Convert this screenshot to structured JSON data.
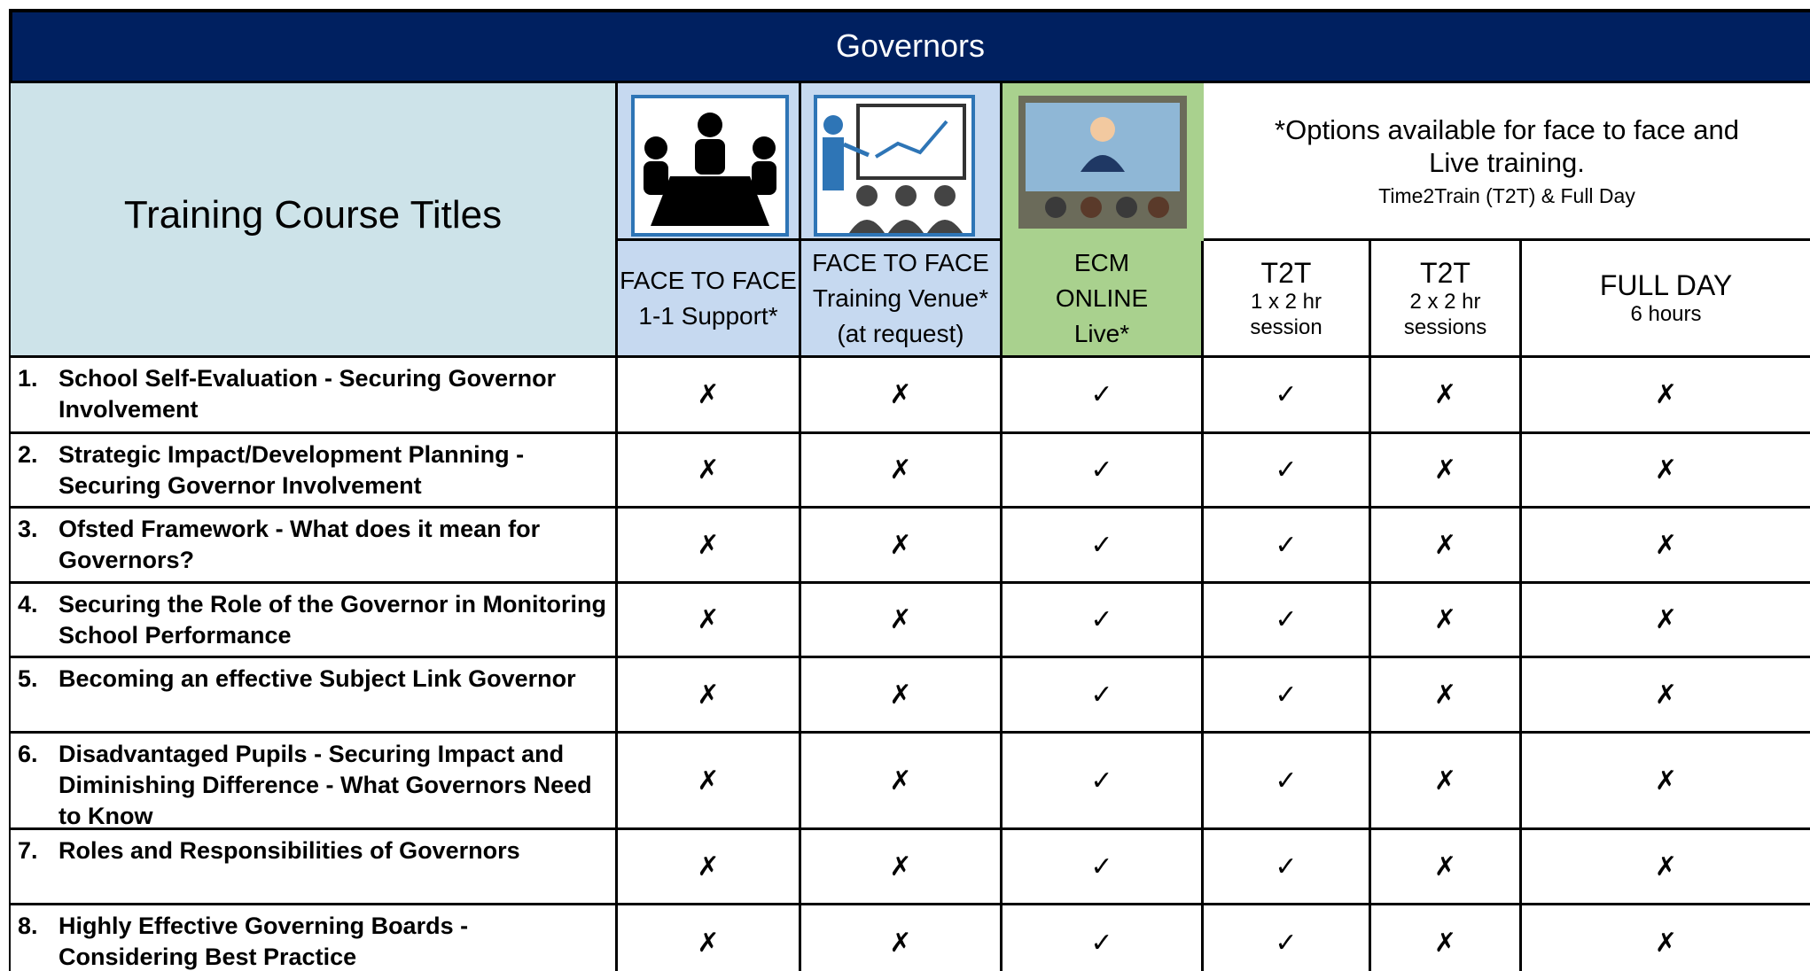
{
  "header": {
    "title": "Governors"
  },
  "table": {
    "title_header": "Training Course Titles",
    "note": {
      "main": "*Options available for face to face and Live training.",
      "sub": "Time2Train (T2T) & Full Day"
    },
    "columns": [
      {
        "lines": [
          "FACE TO FACE",
          "1-1 Support*"
        ]
      },
      {
        "lines": [
          "FACE TO FACE",
          "Training Venue*",
          "(at request)"
        ]
      },
      {
        "lines": [
          "ECM",
          "ONLINE",
          "Live*"
        ]
      },
      {
        "lines": [
          "T2T",
          "1 x 2 hr",
          "session"
        ]
      },
      {
        "lines": [
          "T2T",
          "2 x 2 hr",
          "sessions"
        ]
      },
      {
        "lines": [
          "FULL DAY",
          "6 hours"
        ]
      }
    ],
    "rows": [
      {
        "number": "1.",
        "title": "School Self-Evaluation - Securing Governor Involvement",
        "marks": [
          "✗",
          "✗",
          "✓",
          "✓",
          "✗",
          "✗"
        ]
      },
      {
        "number": "2.",
        "title": "Strategic Impact/Development Planning - Securing Governor Involvement",
        "marks": [
          "✗",
          "✗",
          "✓",
          "✓",
          "✗",
          "✗"
        ]
      },
      {
        "number": "3.",
        "title": "Ofsted Framework  - What does it mean for Governors?",
        "marks": [
          "✗",
          "✗",
          "✓",
          "✓",
          "✗",
          "✗"
        ]
      },
      {
        "number": "4.",
        "title": "Securing the Role of the Governor in Monitoring School Performance",
        "marks": [
          "✗",
          "✗",
          "✓",
          "✓",
          "✗",
          "✗"
        ]
      },
      {
        "number": "5.",
        "title": "Becoming an effective Subject Link Governor",
        "marks": [
          "✗",
          "✗",
          "✓",
          "✓",
          "✗",
          "✗"
        ]
      },
      {
        "number": "6.",
        "title": "Disadvantaged Pupils - Securing Impact and Diminishing Difference - What Governors Need to Know",
        "marks": [
          "✗",
          "✗",
          "✓",
          "✓",
          "✗",
          "✗"
        ]
      },
      {
        "number": "7.",
        "title": "Roles and Responsibilities of Governors",
        "marks": [
          "✗",
          "✗",
          "✓",
          "✓",
          "✗",
          "✗"
        ]
      },
      {
        "number": "8.",
        "title": "Highly Effective Governing Boards - Considering Best Practice",
        "marks": [
          "✗",
          "✗",
          "✓",
          "✓",
          "✗",
          "✗"
        ]
      }
    ]
  }
}
